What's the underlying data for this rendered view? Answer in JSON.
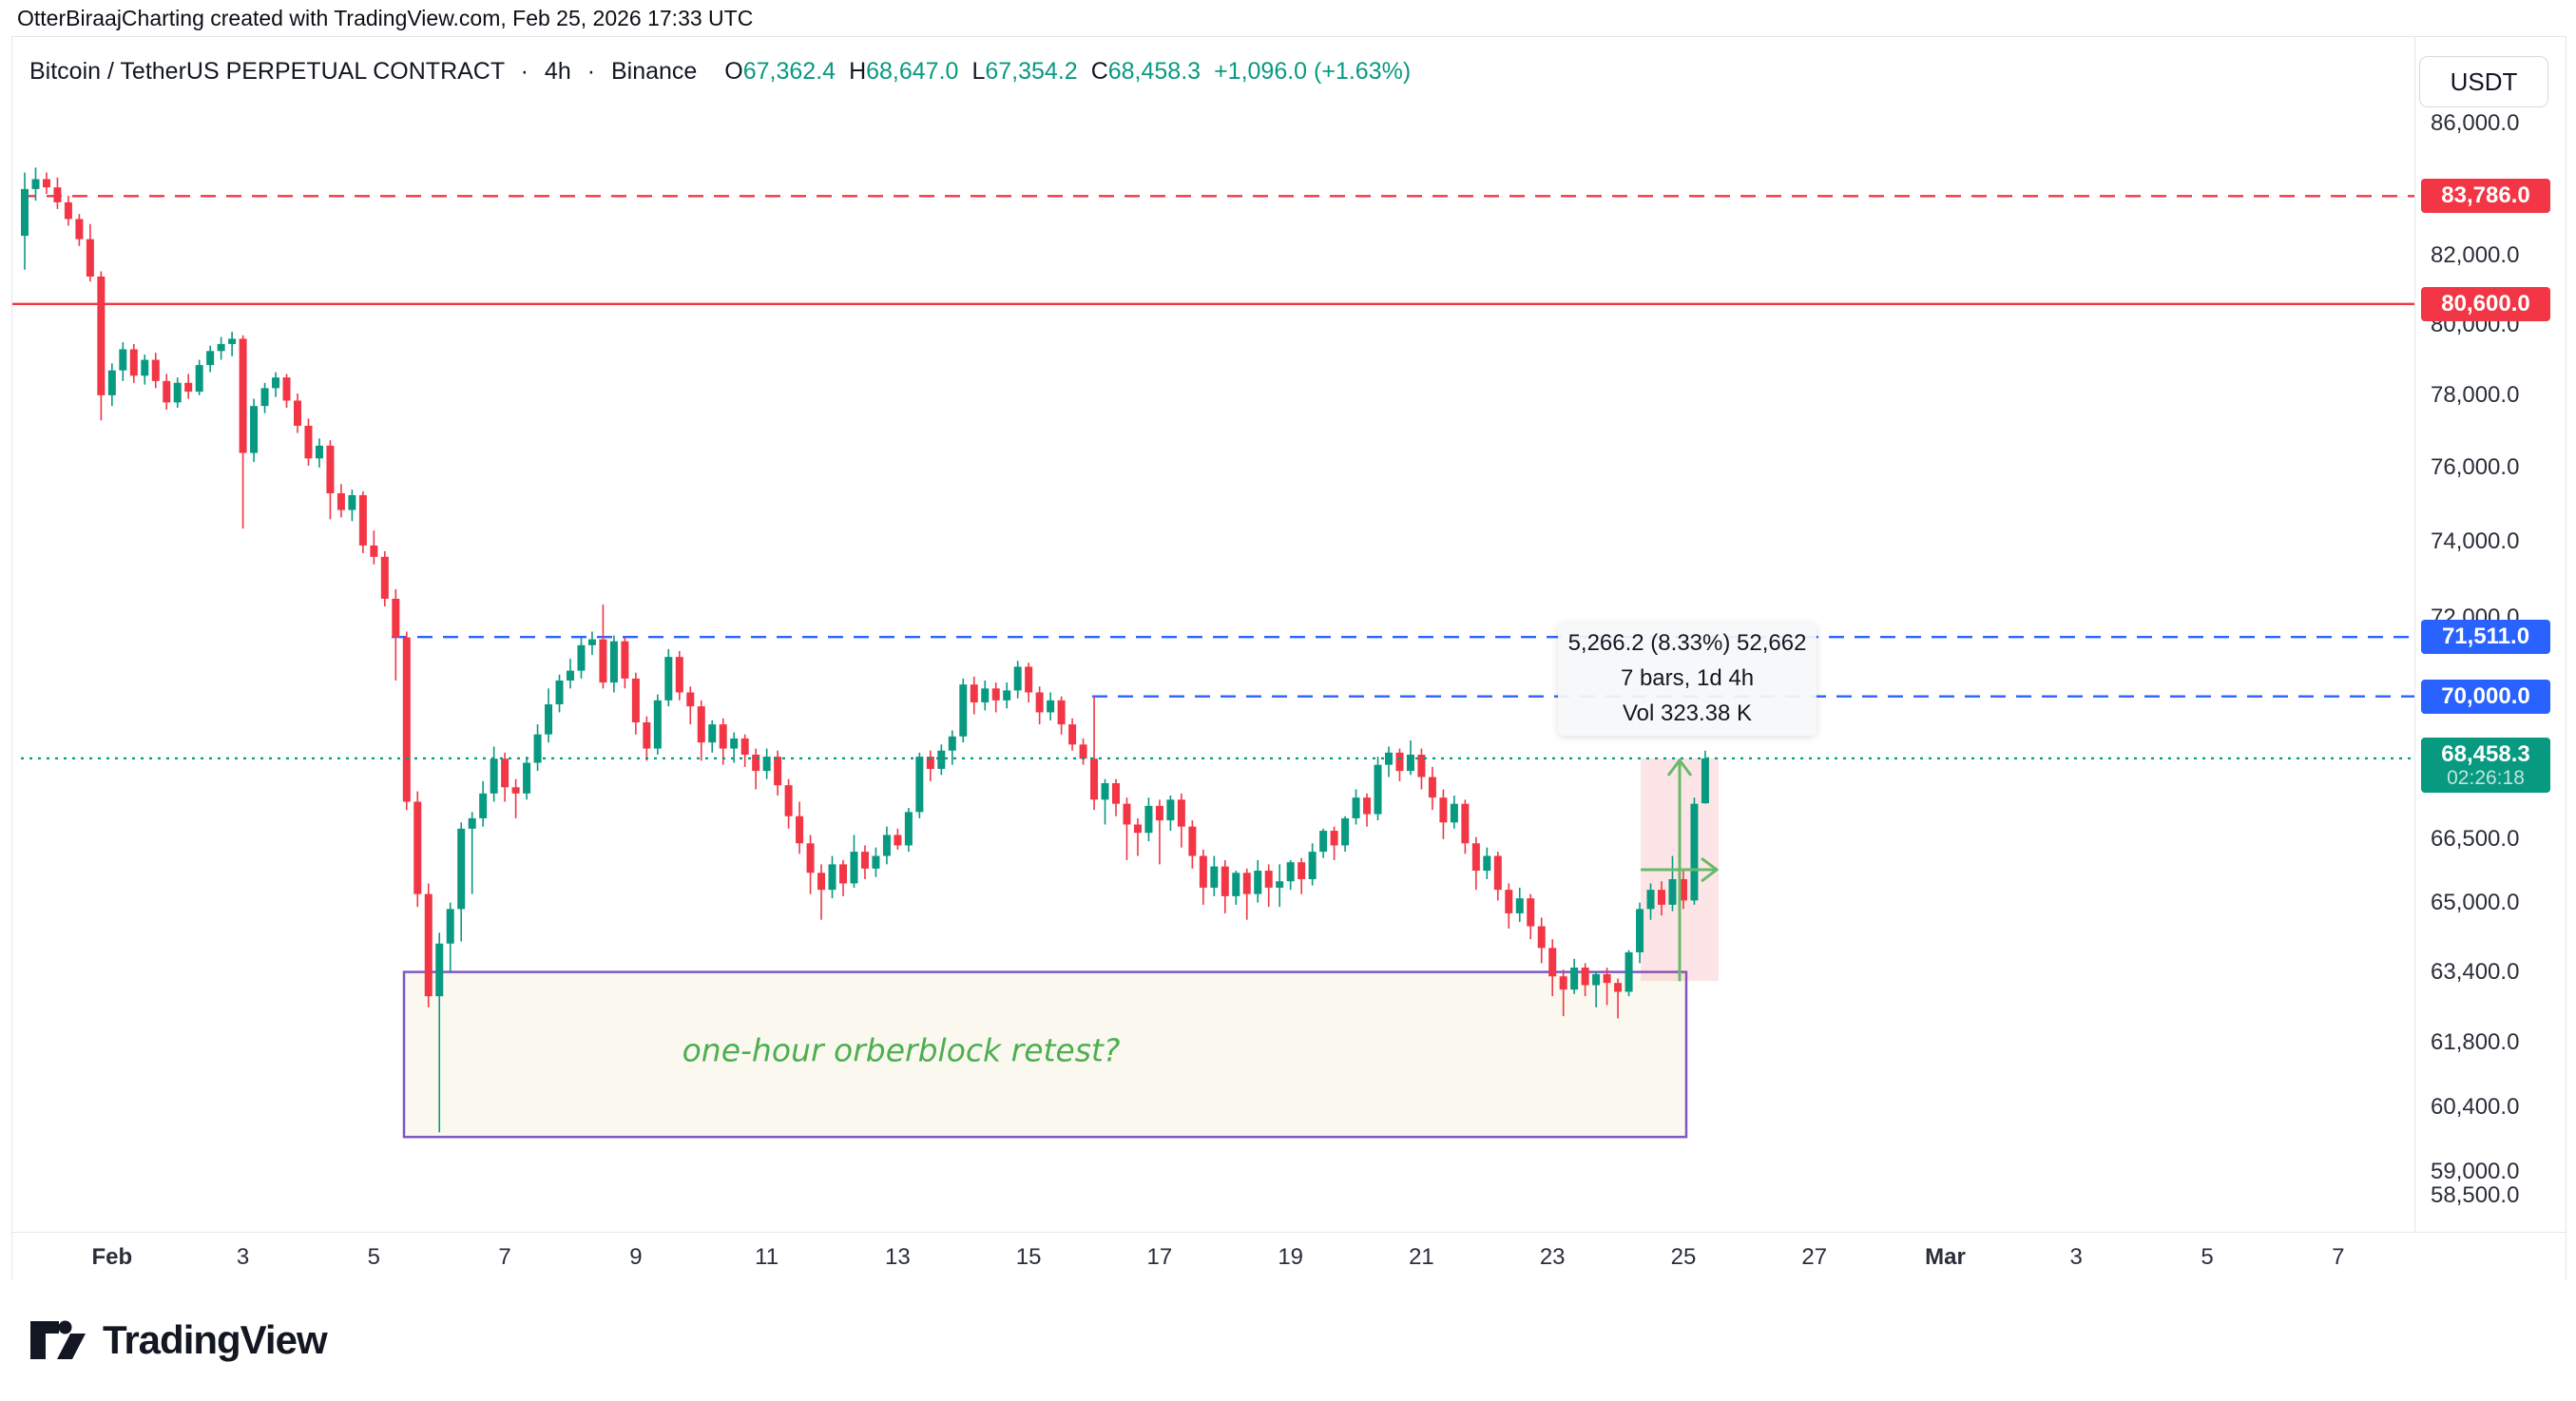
{
  "top_bar": {
    "text": "OtterBiraajCharting created with TradingView.com, Feb 25, 2026 17:33 UTC"
  },
  "header": {
    "symbol": "Bitcoin / TetherUS PERPETUAL CONTRACT",
    "separator": "·",
    "interval": "4h",
    "exchange": "Binance",
    "o_label": "O",
    "o": "67,362.4",
    "h_label": "H",
    "h": "68,647.0",
    "l_label": "L",
    "l": "67,354.2",
    "c_label": "C",
    "c": "68,458.3",
    "change": "+1,096.0 (+1.63%)"
  },
  "price_axis": {
    "currency": "USDT",
    "ticks": [
      {
        "label": "86,000.0",
        "price": 86000
      },
      {
        "label": "84,000.0",
        "price": 84000
      },
      {
        "label": "82,000.0",
        "price": 82000
      },
      {
        "label": "80,000.0",
        "price": 80000
      },
      {
        "label": "78,000.0",
        "price": 78000
      },
      {
        "label": "76,000.0",
        "price": 76000
      },
      {
        "label": "74,000.0",
        "price": 74000
      },
      {
        "label": "72,000.0",
        "price": 72000
      },
      {
        "label": "66,500.0",
        "price": 66500
      },
      {
        "label": "65,000.0",
        "price": 65000
      },
      {
        "label": "63,400.0",
        "price": 63400
      },
      {
        "label": "61,800.0",
        "price": 61800
      },
      {
        "label": "60,400.0",
        "price": 60400
      },
      {
        "label": "59,000.0",
        "price": 59000
      },
      {
        "label": "58,500.0",
        "price": 58500
      }
    ],
    "tags": [
      {
        "label": "83,786.0",
        "price": 83786,
        "color": "#f23645"
      },
      {
        "label": "80,600.0",
        "price": 80600,
        "color": "#f23645"
      },
      {
        "label": "71,511.0",
        "price": 71511,
        "color": "#2962ff"
      },
      {
        "label": "70,000.0",
        "price": 70000,
        "color": "#2962ff"
      },
      {
        "label": "68,458.3",
        "sub": "02:26:18",
        "price": 68458.3,
        "color": "#089981"
      }
    ]
  },
  "time_axis": {
    "ticks": [
      {
        "label": "Feb",
        "idx": 8,
        "major": true
      },
      {
        "label": "3",
        "idx": 20
      },
      {
        "label": "5",
        "idx": 32
      },
      {
        "label": "7",
        "idx": 44
      },
      {
        "label": "9",
        "idx": 56
      },
      {
        "label": "11",
        "idx": 68
      },
      {
        "label": "13",
        "idx": 80
      },
      {
        "label": "15",
        "idx": 92
      },
      {
        "label": "17",
        "idx": 104
      },
      {
        "label": "19",
        "idx": 116
      },
      {
        "label": "21",
        "idx": 128
      },
      {
        "label": "23",
        "idx": 140
      },
      {
        "label": "25",
        "idx": 152
      },
      {
        "label": "27",
        "idx": 164
      },
      {
        "label": "Mar",
        "idx": 176,
        "major": true
      },
      {
        "label": "3",
        "idx": 188
      },
      {
        "label": "5",
        "idx": 200
      },
      {
        "label": "7",
        "idx": 212
      }
    ]
  },
  "chart_data": {
    "type": "candlestick",
    "title": "Bitcoin / TetherUS PERPETUAL CONTRACT 4h Binance",
    "scale": "logarithmic",
    "up_color": "#089981",
    "down_color": "#f23645",
    "ylim": [
      58500,
      86000
    ],
    "candles": [
      [
        82600,
        84500,
        81600,
        84000
      ],
      [
        84000,
        84650,
        83650,
        84300
      ],
      [
        84300,
        84500,
        83850,
        84050
      ],
      [
        84050,
        84350,
        83400,
        83600
      ],
      [
        83600,
        83800,
        82900,
        83100
      ],
      [
        83100,
        83250,
        82300,
        82500
      ],
      [
        82500,
        82950,
        81250,
        81400
      ],
      [
        81400,
        81550,
        77300,
        78000
      ],
      [
        78000,
        78900,
        77700,
        78700
      ],
      [
        78700,
        79500,
        78400,
        79300
      ],
      [
        79300,
        79450,
        78350,
        78550
      ],
      [
        78550,
        79150,
        78300,
        79000
      ],
      [
        79000,
        79200,
        78200,
        78400
      ],
      [
        78400,
        78600,
        77600,
        77800
      ],
      [
        77800,
        78500,
        77650,
        78350
      ],
      [
        78350,
        78600,
        77900,
        78100
      ],
      [
        78100,
        79000,
        78000,
        78850
      ],
      [
        78850,
        79400,
        78650,
        79250
      ],
      [
        79250,
        79650,
        79000,
        79450
      ],
      [
        79450,
        79800,
        79100,
        79600
      ],
      [
        79600,
        79700,
        74350,
        76400
      ],
      [
        76400,
        77900,
        76150,
        77700
      ],
      [
        77700,
        78350,
        77500,
        78200
      ],
      [
        78200,
        78650,
        77950,
        78500
      ],
      [
        78500,
        78600,
        77650,
        77850
      ],
      [
        77850,
        78050,
        76950,
        77150
      ],
      [
        77150,
        77350,
        76050,
        76250
      ],
      [
        76250,
        76800,
        76000,
        76600
      ],
      [
        76600,
        76750,
        74600,
        75300
      ],
      [
        75300,
        75550,
        74650,
        74850
      ],
      [
        74850,
        75400,
        74550,
        75250
      ],
      [
        75250,
        75350,
        73700,
        73900
      ],
      [
        73900,
        74300,
        73400,
        73600
      ],
      [
        73600,
        73750,
        72300,
        72500
      ],
      [
        72500,
        72750,
        70400,
        71500
      ],
      [
        71500,
        71650,
        67200,
        67400
      ],
      [
        67400,
        67650,
        64900,
        65200
      ],
      [
        65200,
        65450,
        62600,
        62850
      ],
      [
        62850,
        64300,
        59850,
        64050
      ],
      [
        64050,
        65000,
        63400,
        64850
      ],
      [
        64850,
        66900,
        64100,
        66750
      ],
      [
        66750,
        67150,
        65200,
        67000
      ],
      [
        67000,
        67900,
        66800,
        67600
      ],
      [
        67600,
        68750,
        67400,
        68450
      ],
      [
        68450,
        68600,
        67400,
        67750
      ],
      [
        67750,
        67950,
        67000,
        67600
      ],
      [
        67600,
        68500,
        67450,
        68350
      ],
      [
        68350,
        69300,
        68150,
        69050
      ],
      [
        69050,
        70200,
        68850,
        69800
      ],
      [
        69800,
        70550,
        69600,
        70400
      ],
      [
        70400,
        70950,
        70200,
        70650
      ],
      [
        70650,
        71500,
        70450,
        71300
      ],
      [
        71300,
        71650,
        71050,
        71450
      ],
      [
        71450,
        72350,
        70200,
        70350
      ],
      [
        70350,
        71550,
        70100,
        71400
      ],
      [
        71400,
        71500,
        70200,
        70450
      ],
      [
        70450,
        70600,
        69050,
        69350
      ],
      [
        69350,
        69500,
        68400,
        68700
      ],
      [
        68700,
        70050,
        68550,
        69900
      ],
      [
        69900,
        71200,
        69750,
        71000
      ],
      [
        71000,
        71150,
        69900,
        70100
      ],
      [
        70100,
        70250,
        69300,
        69750
      ],
      [
        69750,
        69900,
        68400,
        68850
      ],
      [
        68850,
        69400,
        68600,
        69300
      ],
      [
        69300,
        69450,
        68300,
        68700
      ],
      [
        68700,
        69100,
        68350,
        68950
      ],
      [
        68950,
        69050,
        68250,
        68550
      ],
      [
        68550,
        68700,
        67700,
        68150
      ],
      [
        68150,
        68700,
        67950,
        68500
      ],
      [
        68500,
        68650,
        67550,
        67800
      ],
      [
        67800,
        67950,
        66750,
        67050
      ],
      [
        67050,
        67400,
        66150,
        66400
      ],
      [
        66400,
        66600,
        65200,
        65700
      ],
      [
        65700,
        65900,
        64600,
        65300
      ],
      [
        65300,
        66100,
        65100,
        65900
      ],
      [
        65900,
        66000,
        65150,
        65450
      ],
      [
        65450,
        66600,
        65350,
        66200
      ],
      [
        66200,
        66350,
        65550,
        65800
      ],
      [
        65800,
        66300,
        65600,
        66100
      ],
      [
        66100,
        66800,
        65900,
        66600
      ],
      [
        66600,
        66750,
        66250,
        66350
      ],
      [
        66350,
        67250,
        66200,
        67150
      ],
      [
        67150,
        68600,
        67000,
        68500
      ],
      [
        68500,
        68650,
        67900,
        68200
      ],
      [
        68200,
        68800,
        68050,
        68650
      ],
      [
        68650,
        69150,
        68300,
        69000
      ],
      [
        69000,
        70450,
        68850,
        70300
      ],
      [
        70300,
        70500,
        69550,
        69850
      ],
      [
        69850,
        70400,
        69650,
        70200
      ],
      [
        70200,
        70350,
        69600,
        69900
      ],
      [
        69900,
        70350,
        69700,
        70150
      ],
      [
        70150,
        70900,
        69950,
        70750
      ],
      [
        70750,
        70850,
        69850,
        70100
      ],
      [
        70100,
        70250,
        69300,
        69600
      ],
      [
        69600,
        70100,
        69400,
        69900
      ],
      [
        69900,
        70000,
        69050,
        69300
      ],
      [
        69300,
        69450,
        68650,
        68800
      ],
      [
        68800,
        68950,
        68300,
        68450
      ],
      [
        68450,
        70000,
        67200,
        67450
      ],
      [
        67450,
        67950,
        66850,
        67850
      ],
      [
        67850,
        67950,
        67050,
        67350
      ],
      [
        67350,
        67500,
        66000,
        66850
      ],
      [
        66850,
        67000,
        66100,
        66650
      ],
      [
        66650,
        67500,
        66450,
        67300
      ],
      [
        67300,
        67450,
        65900,
        66950
      ],
      [
        66950,
        67550,
        66700,
        67450
      ],
      [
        67450,
        67600,
        66300,
        66800
      ],
      [
        66800,
        66950,
        65800,
        66100
      ],
      [
        66100,
        66250,
        64950,
        65350
      ],
      [
        65350,
        66100,
        65150,
        65850
      ],
      [
        65850,
        66000,
        64750,
        65150
      ],
      [
        65150,
        65750,
        64950,
        65700
      ],
      [
        65700,
        65800,
        64600,
        65200
      ],
      [
        65200,
        66000,
        65000,
        65750
      ],
      [
        65750,
        65900,
        64900,
        65350
      ],
      [
        65350,
        65900,
        64900,
        65500
      ],
      [
        65500,
        66000,
        65300,
        65950
      ],
      [
        65950,
        66050,
        65200,
        65550
      ],
      [
        65550,
        66400,
        65400,
        66200
      ],
      [
        66200,
        66750,
        66050,
        66700
      ],
      [
        66700,
        66800,
        66000,
        66350
      ],
      [
        66350,
        67050,
        66200,
        67000
      ],
      [
        67000,
        67700,
        66850,
        67500
      ],
      [
        67500,
        67600,
        66800,
        67100
      ],
      [
        67100,
        68500,
        66950,
        68300
      ],
      [
        68300,
        68750,
        68000,
        68600
      ],
      [
        68600,
        68700,
        67900,
        68150
      ],
      [
        68150,
        68900,
        68050,
        68550
      ],
      [
        68550,
        68700,
        67700,
        68000
      ],
      [
        68000,
        68250,
        67200,
        67500
      ],
      [
        67500,
        67700,
        66500,
        66900
      ],
      [
        66900,
        67550,
        66750,
        67350
      ],
      [
        67350,
        67450,
        66150,
        66400
      ],
      [
        66400,
        66550,
        65300,
        65750
      ],
      [
        65750,
        66300,
        65550,
        66100
      ],
      [
        66100,
        66200,
        65050,
        65300
      ],
      [
        65300,
        65450,
        64400,
        64750
      ],
      [
        64750,
        65350,
        64550,
        65100
      ],
      [
        65100,
        65200,
        64150,
        64450
      ],
      [
        64450,
        64650,
        63600,
        63950
      ],
      [
        63950,
        64150,
        62850,
        63300
      ],
      [
        63300,
        63450,
        62400,
        63000
      ],
      [
        63000,
        63700,
        62900,
        63500
      ],
      [
        63500,
        63600,
        62850,
        63100
      ],
      [
        63100,
        63400,
        62600,
        63350
      ],
      [
        63350,
        63500,
        62650,
        63150
      ],
      [
        63150,
        63250,
        62350,
        62950
      ],
      [
        62950,
        63900,
        62850,
        63850
      ],
      [
        63850,
        65000,
        63600,
        64850
      ],
      [
        64850,
        65450,
        64600,
        65300
      ],
      [
        65300,
        65500,
        64700,
        64950
      ],
      [
        64950,
        66100,
        64800,
        65550
      ],
      [
        65550,
        65750,
        64850,
        65050
      ],
      [
        65050,
        67500,
        64950,
        67350
      ],
      [
        67362,
        68647,
        67354,
        68458.3
      ]
    ],
    "levels": [
      {
        "price": 83786,
        "label": "83,786.0",
        "color": "#f23645",
        "style": "dashed",
        "from_x": 21
      },
      {
        "price": 80600,
        "label": "80,600.0",
        "color": "#f23645",
        "style": "solid",
        "from_x": 8
      },
      {
        "price": 71511,
        "label": "71,511.0",
        "color": "#2962ff",
        "style": "dashed",
        "from_x": 411
      },
      {
        "price": 70000,
        "label": "70,000.0",
        "color": "#2962ff",
        "style": "dashed",
        "from_x": 1148
      },
      {
        "price": 68458.3,
        "label": "68,458.3",
        "color": "#089981",
        "style": "dotted",
        "from_x": 21
      }
    ],
    "order_block": {
      "text": "one-hour orberblock retest?",
      "from_x": 424,
      "to_x": 1773,
      "top_price": 63400,
      "bottom_price": 59750,
      "border_color": "#7e57c2",
      "fill_color": "#fbf9ef",
      "text_color": "#4caf50"
    },
    "measure": {
      "line1": "5,266.2 (8.33%) 52,662",
      "line2": "7 bars, 1d 4h",
      "line3": "Vol 323.38 K",
      "from_x": 1725,
      "to_x": 1807,
      "top_price": 68458.3,
      "bottom_price": 63192.1,
      "fill_color": "rgba(242,54,69,0.13)",
      "arrow_color": "#66bb6a",
      "arrow_x": 1766
    }
  },
  "footer": {
    "brand": "TradingView"
  }
}
